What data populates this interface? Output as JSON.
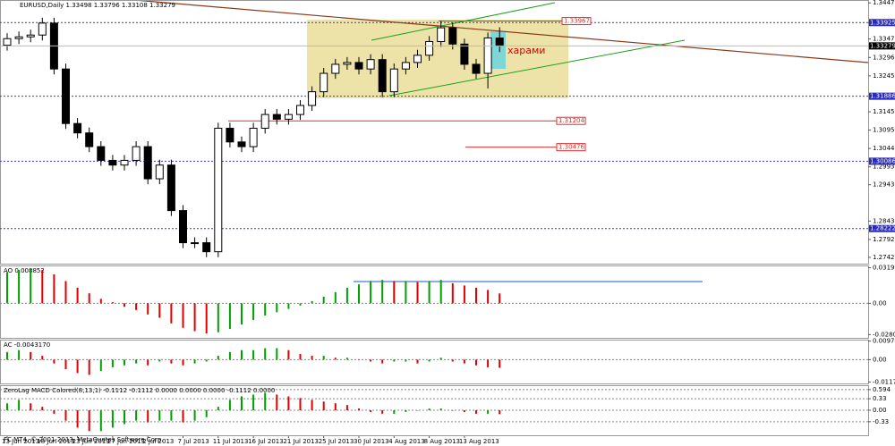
{
  "header": "EURUSD,Daily  1.33498 1.33796 1.33108 1.33279",
  "footer": "FC MT4, © 2001-2013, MetaQuotes Software Corp.",
  "chart_data": [
    {
      "type": "candlestick",
      "annotation": "харами",
      "categories": [
        "13 Jun 2013",
        null,
        null,
        "18 Jun 2013",
        null,
        null,
        "23 Jun 2013",
        null,
        null,
        "27 Jun 2013",
        null,
        null,
        "2 Jul 2013",
        null,
        null,
        "7 Jul 2013",
        null,
        null,
        "11 Jul 2013",
        null,
        null,
        "16 Jul 2013",
        null,
        null,
        "21 Jul 2013",
        null,
        null,
        "25 Jul 2013",
        null,
        null,
        "30 Jul 2013",
        null,
        null,
        "4 Aug 2013",
        null,
        null,
        "8 Aug 2013",
        null,
        null,
        "13 Aug 2013",
        null,
        null,
        null
      ],
      "open": [
        1.333,
        1.3348,
        1.3353,
        1.3358,
        1.3391,
        1.3264,
        1.3113,
        1.3087,
        1.3049,
        1.3011,
        1.2998,
        1.3011,
        1.3049,
        1.296,
        1.2998,
        1.2872,
        1.2783,
        1.2783,
        1.2758,
        1.31,
        1.3062,
        1.3049,
        1.31,
        1.3138,
        1.3125,
        1.3138,
        1.3163,
        1.3201,
        1.3252,
        1.3277,
        1.3282,
        1.3264,
        1.329,
        1.3201,
        1.3264,
        1.3282,
        1.3302,
        1.334,
        1.3378,
        1.3333,
        1.3277,
        1.3252,
        1.33498
      ],
      "high": [
        1.3363,
        1.3368,
        1.3373,
        1.3406,
        1.3406,
        1.3279,
        1.3128,
        1.3102,
        1.3064,
        1.3026,
        1.3026,
        1.3064,
        1.3064,
        1.3013,
        1.3013,
        1.2887,
        1.2798,
        1.2798,
        1.3115,
        1.3115,
        1.3077,
        1.3115,
        1.3153,
        1.3153,
        1.3153,
        1.3178,
        1.3216,
        1.3267,
        1.3292,
        1.3297,
        1.3297,
        1.3305,
        1.3305,
        1.3279,
        1.3297,
        1.3317,
        1.3355,
        1.3397,
        1.3393,
        1.3348,
        1.3292,
        1.3365,
        1.33796
      ],
      "low": [
        1.3315,
        1.3333,
        1.3338,
        1.3343,
        1.3249,
        1.3098,
        1.3072,
        1.3034,
        1.2996,
        1.2983,
        1.2983,
        1.2996,
        1.2945,
        1.2945,
        1.2857,
        1.2768,
        1.2768,
        1.2743,
        1.2743,
        1.3047,
        1.3034,
        1.3034,
        1.3085,
        1.311,
        1.311,
        1.3123,
        1.3148,
        1.3186,
        1.3237,
        1.3262,
        1.3249,
        1.3249,
        1.3186,
        1.3186,
        1.3249,
        1.3267,
        1.3287,
        1.3325,
        1.3318,
        1.3262,
        1.3237,
        1.321,
        1.33108
      ],
      "close": [
        1.3348,
        1.3353,
        1.3358,
        1.3391,
        1.3264,
        1.3113,
        1.3087,
        1.3049,
        1.3011,
        1.2998,
        1.3011,
        1.3049,
        1.296,
        1.2998,
        1.2872,
        1.2783,
        1.2783,
        1.2758,
        1.31,
        1.3062,
        1.3049,
        1.31,
        1.3138,
        1.3125,
        1.3138,
        1.3163,
        1.3201,
        1.3252,
        1.3277,
        1.3282,
        1.3264,
        1.329,
        1.3201,
        1.3264,
        1.3282,
        1.3302,
        1.334,
        1.3378,
        1.3333,
        1.3277,
        1.3252,
        1.335,
        1.33279
      ],
      "up_color": "#ffffff",
      "down_color": "#000000",
      "ylim": [
        1.2725,
        1.3455
      ],
      "yticks": [
        {
          "value": 1.3447,
          "label": "1.34470"
        },
        1.33925,
        {
          "value": 1.3347,
          "label": "1.33470"
        },
        {
          "value": 1.3296,
          "label": "1.32960"
        },
        {
          "value": 1.3245,
          "label": "1.32450"
        },
        1.31455,
        {
          "value": 1.3095,
          "label": "1.30950"
        },
        {
          "value": 1.3044,
          "label": "1.30440"
        },
        {
          "value": 1.2993,
          "label": "1.29930"
        },
        1.29435,
        {
          "value": 1.2843,
          "label": "1.28430"
        },
        {
          "value": 1.2792,
          "label": "1.27920"
        },
        1.27425
      ],
      "levels": [
        1.33925,
        1.31886,
        1.30086,
        1.28222
      ],
      "object_labels": [
        1.33967,
        1.31204,
        1.30476
      ]
    },
    {
      "type": "histogram",
      "title": "AO 0.008852",
      "values": [
        0.028,
        0.03,
        0.031,
        0.03,
        0.026,
        0.02,
        0.014,
        0.009,
        0.004,
        0.001,
        -0.003,
        -0.006,
        -0.01,
        -0.013,
        -0.018,
        -0.022,
        -0.025,
        -0.027,
        -0.026,
        -0.023,
        -0.019,
        -0.015,
        -0.011,
        -0.008,
        -0.005,
        -0.002,
        0.002,
        0.006,
        0.01,
        0.014,
        0.017,
        0.02,
        0.021,
        0.02,
        0.02,
        0.019,
        0.02,
        0.021,
        0.018,
        0.016,
        0.014,
        0.012,
        0.008852
      ],
      "up_color": "#00a000",
      "down_color": "#e00000",
      "ylim": [
        -0.031,
        0.034
      ],
      "yticks": [
        0.031937,
        {
          "value": 0,
          "label": "0.00"
        },
        -0.028074
      ]
    },
    {
      "type": "histogram",
      "title": "AC -0.0043170",
      "values": [
        0.004,
        0.005,
        0.004,
        0.002,
        -0.002,
        -0.005,
        -0.007,
        -0.008,
        -0.006,
        -0.004,
        -0.003,
        -0.002,
        -0.003,
        -0.001,
        -0.002,
        -0.003,
        -0.002,
        -0.001,
        0.002,
        0.004,
        0.005,
        0.005,
        0.006,
        0.006,
        0.005,
        0.003,
        0.002,
        0.002,
        0.001,
        0.001,
        0.0,
        -0.001,
        -0.002,
        -0.001,
        -0.001,
        -0.002,
        -0.001,
        0.001,
        -0.001,
        -0.002,
        -0.003,
        -0.004,
        -0.004317
      ],
      "up_color": "#00a000",
      "down_color": "#e00000",
      "ylim": [
        -0.0125,
        0.0105
      ],
      "yticks": [
        0.009713,
        {
          "value": 0,
          "label": "0.00"
        },
        -0.011723
      ]
    },
    {
      "type": "histogram",
      "title": "ZeroLag MACD Colored(8,13,1) -0.1112 -0.1112 0.0000 0.0000 0.0000 -0.1112 0.0000",
      "values": [
        0.2,
        0.3,
        0.2,
        0.1,
        -0.1,
        -0.3,
        -0.5,
        -0.6,
        -0.6,
        -0.5,
        -0.4,
        -0.3,
        -0.35,
        -0.3,
        -0.3,
        -0.35,
        -0.3,
        -0.2,
        0.1,
        0.3,
        0.4,
        0.45,
        0.5,
        0.45,
        0.4,
        0.35,
        0.3,
        0.25,
        0.2,
        0.15,
        0.05,
        -0.05,
        -0.1,
        -0.1,
        -0.05,
        0.0,
        0.05,
        0.05,
        0.0,
        -0.05,
        -0.1,
        -0.1,
        -0.1112
      ],
      "up_color": "#00a000",
      "down_color": "#e00000",
      "ylim": [
        -0.72,
        0.72
      ],
      "yticks": [
        0.594,
        0.33,
        {
          "value": 0,
          "label": "0.00"
        },
        -0.33
      ]
    }
  ]
}
